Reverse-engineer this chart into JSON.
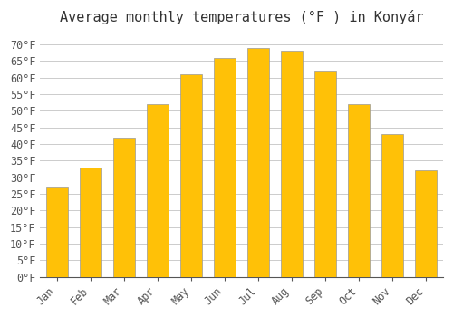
{
  "title": "Average monthly temperatures (°F ) in Konyár",
  "months": [
    "Jan",
    "Feb",
    "Mar",
    "Apr",
    "May",
    "Jun",
    "Jul",
    "Aug",
    "Sep",
    "Oct",
    "Nov",
    "Dec"
  ],
  "values": [
    27,
    33,
    42,
    52,
    61,
    66,
    69,
    68,
    62,
    52,
    43,
    32
  ],
  "bar_color_top": "#FFC107",
  "bar_color_bottom": "#FFB300",
  "bar_edge_color": "#999999",
  "background_color": "#ffffff",
  "grid_color": "#cccccc",
  "ylim": [
    0,
    73
  ],
  "ytick_step": 5,
  "title_fontsize": 11,
  "axis_fontsize": 9,
  "tick_fontsize": 8.5
}
